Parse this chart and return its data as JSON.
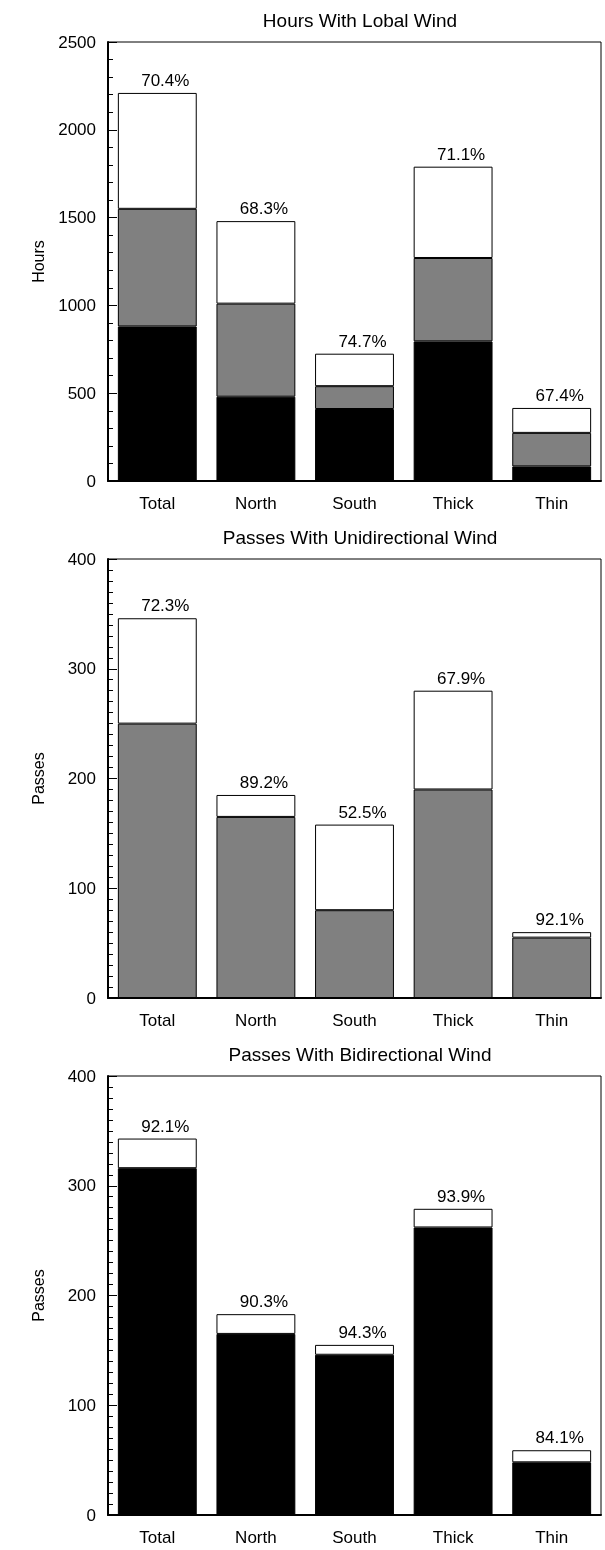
{
  "chart_data": [
    {
      "type": "bar",
      "title": "Hours With Lobal Wind",
      "ylabel": "Hours",
      "categories": [
        "Total",
        "North",
        "South",
        "Thick",
        "Thin"
      ],
      "stacked": true,
      "ylim": [
        0,
        2500
      ],
      "yticks": [
        0,
        500,
        1000,
        1500,
        2000,
        2500
      ],
      "series": [
        {
          "color": "#000000",
          "values": [
            880,
            480,
            410,
            795,
            83
          ]
        },
        {
          "color": "#808080",
          "values": [
            670,
            530,
            130,
            475,
            191
          ]
        },
        {
          "color": "#ffffff",
          "values": [
            660,
            470,
            185,
            520,
            142
          ]
        }
      ],
      "annotations": [
        {
          "text": "70.4%",
          "x": "Total",
          "y": 2210
        },
        {
          "text": "68.3%",
          "x": "North",
          "y": 1480
        },
        {
          "text": "74.7%",
          "x": "South",
          "y": 725
        },
        {
          "text": "71.1%",
          "x": "Thick",
          "y": 1790
        },
        {
          "text": "67.4%",
          "x": "Thin",
          "y": 416
        }
      ]
    },
    {
      "type": "bar",
      "title": "Passes With Unidirectional Wind",
      "ylabel": "Passes",
      "categories": [
        "Total",
        "North",
        "South",
        "Thick",
        "Thin"
      ],
      "stacked": true,
      "ylim": [
        0,
        400
      ],
      "yticks": [
        0,
        100,
        200,
        300,
        400
      ],
      "series": [
        {
          "color": "#808080",
          "values": [
            250,
            165,
            80,
            190,
            55
          ]
        },
        {
          "color": "#ffffff",
          "values": [
            96,
            20,
            78,
            90,
            5
          ]
        }
      ],
      "annotations": [
        {
          "text": "72.3%",
          "x": "Total",
          "y": 346
        },
        {
          "text": "89.2%",
          "x": "North",
          "y": 185
        },
        {
          "text": "52.5%",
          "x": "South",
          "y": 158
        },
        {
          "text": "67.9%",
          "x": "Thick",
          "y": 280
        },
        {
          "text": "92.1%",
          "x": "Thin",
          "y": 60
        }
      ]
    },
    {
      "type": "bar",
      "title": "Passes With Bidirectional Wind",
      "ylabel": "Passes",
      "categories": [
        "Total",
        "North",
        "South",
        "Thick",
        "Thin"
      ],
      "stacked": true,
      "ylim": [
        0,
        400
      ],
      "yticks": [
        0,
        100,
        200,
        300,
        400
      ],
      "series": [
        {
          "color": "#000000",
          "values": [
            316,
            165,
            146,
            262,
            48
          ]
        },
        {
          "color": "#ffffff",
          "values": [
            27,
            18,
            9,
            17,
            11
          ]
        }
      ],
      "annotations": [
        {
          "text": "92.1%",
          "x": "Total",
          "y": 343
        },
        {
          "text": "90.3%",
          "x": "North",
          "y": 183
        },
        {
          "text": "94.3%",
          "x": "South",
          "y": 155
        },
        {
          "text": "93.9%",
          "x": "Thick",
          "y": 279
        },
        {
          "text": "84.1%",
          "x": "Thin",
          "y": 59
        }
      ]
    }
  ]
}
